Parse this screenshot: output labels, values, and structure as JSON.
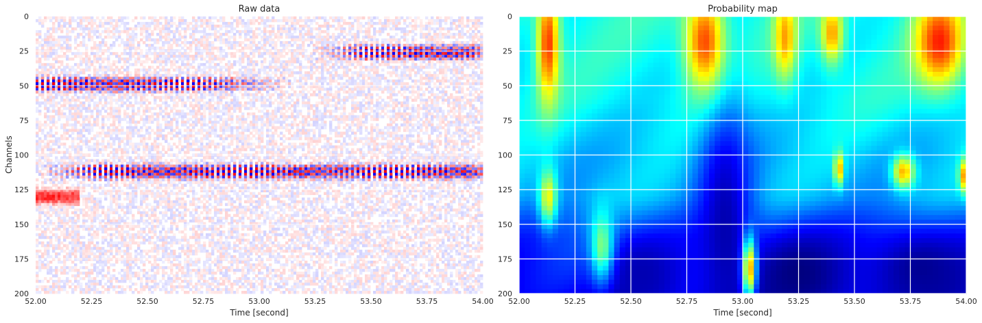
{
  "chart_data": [
    {
      "type": "heatmap",
      "title": "Raw data",
      "xlabel": "Time [second]",
      "ylabel": "Channels",
      "xlim": [
        52.0,
        54.0
      ],
      "ylim": [
        200,
        0
      ],
      "xticks": [
        "52.00",
        "52.25",
        "52.50",
        "52.75",
        "53.00",
        "53.25",
        "53.50",
        "53.75",
        "54.00"
      ],
      "yticks": [
        "0",
        "25",
        "50",
        "75",
        "100",
        "125",
        "150",
        "175",
        "200"
      ],
      "colormap": "seismic (blue-white-red)",
      "features": [
        {
          "channel_center": 26,
          "t_start": 53.2,
          "t_end": 54.0,
          "description": "strong oscillating band"
        },
        {
          "channel_center": 49,
          "t_start": 52.0,
          "t_end": 53.2,
          "description": "oscillating band"
        },
        {
          "channel_center": 112,
          "t_start": 52.0,
          "t_end": 54.0,
          "description": "strong oscillating band"
        },
        {
          "channel_center": 130,
          "t_start": 52.0,
          "t_end": 52.2,
          "description": "short red patch"
        }
      ]
    },
    {
      "type": "heatmap",
      "title": "Probability map",
      "xlabel": "Time [second]",
      "ylabel": "",
      "xlim": [
        52.0,
        54.0
      ],
      "ylim": [
        200,
        0
      ],
      "xticks": [
        "52.00",
        "52.25",
        "52.50",
        "52.75",
        "53.00",
        "53.25",
        "53.50",
        "53.75",
        "54.00"
      ],
      "yticks": [
        "0",
        "25",
        "50",
        "75",
        "100",
        "125",
        "150",
        "175",
        "200"
      ],
      "colormap": "jet",
      "grid": true,
      "base_levels": [
        {
          "channel": 0,
          "value": 0.4
        },
        {
          "channel": 60,
          "value": 0.38
        },
        {
          "channel": 100,
          "value": 0.32
        },
        {
          "channel": 130,
          "value": 0.3
        },
        {
          "channel": 160,
          "value": 0.18
        },
        {
          "channel": 200,
          "value": 0.1
        }
      ],
      "hotspots": [
        {
          "t": 52.13,
          "channel": 20,
          "value": 0.82,
          "width_s": 0.05,
          "height_ch": 42
        },
        {
          "t": 52.83,
          "channel": 18,
          "value": 0.8,
          "width_s": 0.09,
          "height_ch": 36
        },
        {
          "t": 53.19,
          "channel": 15,
          "value": 0.72,
          "width_s": 0.05,
          "height_ch": 30
        },
        {
          "t": 53.4,
          "channel": 12,
          "value": 0.72,
          "width_s": 0.05,
          "height_ch": 22
        },
        {
          "t": 53.88,
          "channel": 18,
          "value": 0.85,
          "width_s": 0.11,
          "height_ch": 32
        },
        {
          "t": 53.43,
          "channel": 110,
          "value": 0.72,
          "width_s": 0.02,
          "height_ch": 12
        },
        {
          "t": 53.72,
          "channel": 112,
          "value": 0.7,
          "width_s": 0.05,
          "height_ch": 12
        },
        {
          "t": 54.0,
          "channel": 115,
          "value": 0.78,
          "width_s": 0.03,
          "height_ch": 12
        },
        {
          "t": 52.13,
          "channel": 130,
          "value": 0.62,
          "width_s": 0.04,
          "height_ch": 20
        },
        {
          "t": 53.03,
          "channel": 182,
          "value": 0.72,
          "width_s": 0.03,
          "height_ch": 22
        },
        {
          "t": 52.37,
          "channel": 165,
          "value": 0.5,
          "width_s": 0.05,
          "height_ch": 26
        }
      ],
      "lows": [
        {
          "t": 52.92,
          "channel": 150,
          "value": 0.05,
          "width_s": 0.12,
          "height_ch": 90
        },
        {
          "t": 53.25,
          "channel": 185,
          "value": 0.0,
          "width_s": 0.22,
          "height_ch": 30
        },
        {
          "t": 53.8,
          "channel": 182,
          "value": 0.02,
          "width_s": 0.25,
          "height_ch": 30
        },
        {
          "t": 52.55,
          "channel": 185,
          "value": 0.05,
          "width_s": 0.15,
          "height_ch": 25
        }
      ]
    }
  ]
}
